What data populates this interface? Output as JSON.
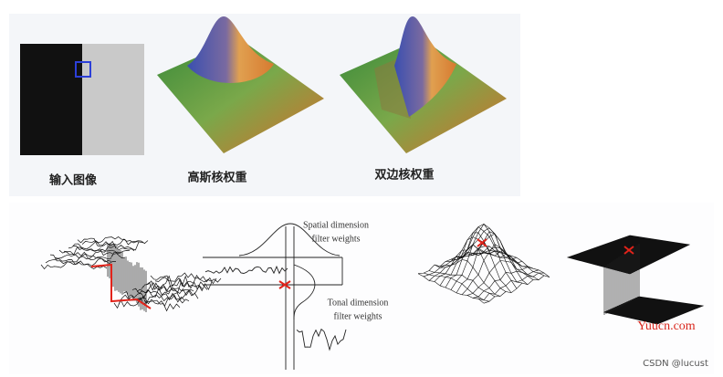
{
  "top_panel": {
    "labels": [
      "输入图像",
      "高斯核权重",
      "双边核权重"
    ]
  },
  "bottom_panel": {
    "spatial_label": [
      "Spatial dimension",
      "filter weights"
    ],
    "tonal_label": [
      "Tonal dimension",
      "filter weights"
    ]
  },
  "watermark": "Yuucn.com",
  "credit": "CSDN @lucust"
}
